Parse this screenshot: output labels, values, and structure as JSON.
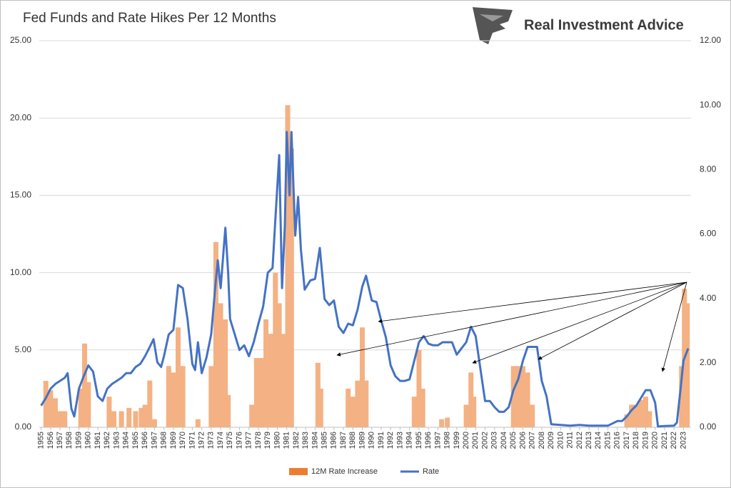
{
  "chart_data": {
    "type": "combo",
    "title": "Fed Funds and Rate Hikes Per 12 Months",
    "source": "Real Investment Advice",
    "xlim": [
      1954.8,
      2023.8
    ],
    "xticks": [
      1955,
      1956,
      1957,
      1958,
      1959,
      1960,
      1961,
      1962,
      1963,
      1964,
      1965,
      1966,
      1967,
      1968,
      1969,
      1970,
      1971,
      1972,
      1973,
      1974,
      1975,
      1976,
      1977,
      1978,
      1979,
      1980,
      1981,
      1982,
      1983,
      1984,
      1985,
      1986,
      1987,
      1988,
      1989,
      1990,
      1991,
      1992,
      1993,
      1994,
      1995,
      1996,
      1997,
      1998,
      1999,
      2000,
      2001,
      2002,
      2003,
      2004,
      2005,
      2006,
      2007,
      2008,
      2009,
      2010,
      2011,
      2012,
      2013,
      2014,
      2015,
      2016,
      2017,
      2018,
      2019,
      2020,
      2021,
      2022,
      2023
    ],
    "ylim": [
      0,
      25
    ],
    "yticks": [
      {
        "value": 0,
        "label": "0.00"
      },
      {
        "value": 5,
        "label": "5.00"
      },
      {
        "value": 10,
        "label": "10.00"
      },
      {
        "value": 15,
        "label": "15.00"
      },
      {
        "value": 20,
        "label": "20.00"
      },
      {
        "value": 25,
        "label": "25.00"
      }
    ],
    "y2lim": [
      0,
      12
    ],
    "y2ticks": [
      {
        "value": 0,
        "label": "0.00"
      },
      {
        "value": 2,
        "label": "2.00"
      },
      {
        "value": 4,
        "label": "4.00"
      },
      {
        "value": 6,
        "label": "6.00"
      },
      {
        "value": 8,
        "label": "8.00"
      },
      {
        "value": 10,
        "label": "10.00"
      },
      {
        "value": 12,
        "label": "12.00"
      }
    ],
    "grid": true,
    "legend": "bottom",
    "series": [
      {
        "name": "12M Rate Increase",
        "type": "bar",
        "axis": "y2",
        "color": "#f4b183",
        "legend_color": "#ed7d31",
        "x": [
          1955.5,
          1956,
          1956.5,
          1957,
          1957.5,
          1959.2,
          1959.6,
          1960,
          1962.2,
          1962.7,
          1963.5,
          1964.3,
          1965,
          1965.6,
          1966,
          1966.5,
          1967,
          1968.5,
          1969,
          1969.5,
          1970,
          1971.6,
          1973,
          1973.5,
          1974,
          1974.5,
          1974.8,
          1977.3,
          1977.8,
          1978.3,
          1978.8,
          1979.3,
          1979.8,
          1980.2,
          1980.7,
          1981.1,
          1981.5,
          1984.3,
          1984.6,
          1987.5,
          1988,
          1988.5,
          1989,
          1989.4,
          1994.5,
          1995,
          1995.4,
          1997.4,
          1998,
          2000,
          2000.5,
          2000.8,
          2005,
          2005.5,
          2006,
          2006.5,
          2007,
          2017,
          2017.5,
          2018,
          2018.5,
          2019,
          2019.4,
          2022.8,
          2023.1,
          2023.4
        ],
        "values": [
          1.44,
          1.15,
          0.9,
          0.5,
          0.5,
          1.2,
          2.6,
          1.4,
          0.95,
          0.5,
          0.5,
          0.6,
          0.5,
          0.6,
          0.7,
          1.45,
          0.25,
          1.9,
          1.7,
          3.1,
          1.9,
          0.25,
          1.9,
          5.75,
          3.85,
          3.35,
          1.0,
          0.7,
          2.15,
          2.15,
          3.35,
          2.9,
          4.8,
          3.85,
          2.9,
          10.0,
          8.65,
          2.0,
          1.2,
          1.2,
          0.95,
          1.45,
          3.1,
          1.45,
          0.95,
          2.4,
          1.2,
          0.25,
          0.3,
          0.7,
          1.7,
          0.95,
          1.9,
          1.9,
          1.9,
          1.7,
          0.7,
          0.4,
          0.7,
          0.7,
          0.85,
          0.95,
          0.5,
          1.9,
          4.3,
          3.85
        ]
      },
      {
        "name": "Rate",
        "type": "line",
        "axis": "y",
        "color": "#4472c4",
        "x": [
          1955,
          1955.5,
          1956,
          1956.5,
          1957,
          1957.5,
          1957.8,
          1958.2,
          1958.5,
          1959,
          1959.5,
          1960,
          1960.5,
          1961,
          1961.5,
          1962,
          1962.5,
          1963,
          1963.5,
          1964,
          1964.5,
          1965,
          1965.5,
          1966,
          1966.5,
          1966.9,
          1967.3,
          1967.7,
          1968,
          1968.5,
          1969,
          1969.5,
          1970,
          1970.5,
          1971,
          1971.3,
          1971.6,
          1972,
          1972.5,
          1973,
          1973.5,
          1973.7,
          1974,
          1974.5,
          1974.8,
          1975,
          1975.5,
          1976,
          1976.5,
          1977,
          1977.5,
          1978,
          1978.5,
          1979,
          1979.5,
          1979.8,
          1980.2,
          1980.5,
          1980.8,
          1981,
          1981.3,
          1981.5,
          1981.9,
          1982.2,
          1982.5,
          1982.9,
          1983.5,
          1984,
          1984.5,
          1985,
          1985.5,
          1986,
          1986.5,
          1987,
          1987.5,
          1988,
          1988.5,
          1989,
          1989.4,
          1990,
          1990.5,
          1991,
          1991.5,
          1992,
          1992.5,
          1993,
          1993.5,
          1994,
          1994.5,
          1995,
          1995.5,
          1996,
          1996.5,
          1997,
          1997.5,
          1998,
          1998.5,
          1999,
          1999.5,
          2000,
          2000.5,
          2001,
          2001.5,
          2002,
          2002.5,
          2003,
          2003.5,
          2004,
          2004.5,
          2005,
          2005.5,
          2006,
          2006.5,
          2007,
          2007.5,
          2008,
          2008.5,
          2009,
          2010,
          2011,
          2012,
          2013,
          2014,
          2015,
          2016,
          2016.5,
          2017,
          2017.5,
          2018,
          2018.5,
          2019,
          2019.5,
          2020,
          2020.3,
          2021,
          2022,
          2022.3,
          2022.7,
          2023,
          2023.5
        ],
        "values": [
          1.4,
          1.9,
          2.5,
          2.8,
          3.0,
          3.2,
          3.5,
          1.2,
          0.7,
          2.5,
          3.3,
          4.0,
          3.6,
          2.0,
          1.7,
          2.5,
          2.8,
          3.0,
          3.2,
          3.5,
          3.5,
          3.9,
          4.1,
          4.6,
          5.2,
          5.7,
          4.2,
          3.9,
          4.6,
          6.0,
          6.3,
          9.2,
          9.0,
          7.0,
          4.1,
          3.7,
          5.5,
          3.5,
          4.5,
          6.0,
          9.5,
          10.8,
          9.0,
          12.9,
          10.0,
          7.0,
          6.0,
          5.0,
          5.3,
          4.6,
          5.5,
          6.7,
          7.8,
          10.0,
          10.3,
          13.5,
          17.6,
          9.0,
          13.0,
          19.1,
          15.0,
          19.1,
          12.4,
          14.9,
          11.5,
          8.9,
          9.5,
          9.6,
          11.6,
          8.3,
          7.9,
          8.2,
          6.5,
          6.1,
          6.7,
          6.6,
          7.6,
          9.1,
          9.8,
          8.2,
          8.1,
          6.9,
          5.8,
          4.0,
          3.3,
          3.0,
          3.0,
          3.1,
          4.3,
          5.5,
          5.9,
          5.4,
          5.3,
          5.3,
          5.5,
          5.5,
          5.5,
          4.7,
          5.1,
          5.5,
          6.5,
          5.9,
          3.8,
          1.7,
          1.7,
          1.3,
          1.0,
          1.0,
          1.3,
          2.4,
          3.1,
          4.3,
          5.2,
          5.2,
          5.2,
          3.0,
          2.0,
          0.2,
          0.15,
          0.1,
          0.15,
          0.1,
          0.1,
          0.1,
          0.4,
          0.4,
          0.7,
          1.1,
          1.4,
          1.9,
          2.4,
          2.4,
          1.6,
          0.05,
          0.08,
          0.1,
          0.3,
          2.5,
          4.3,
          5.1
        ]
      }
    ]
  }
}
